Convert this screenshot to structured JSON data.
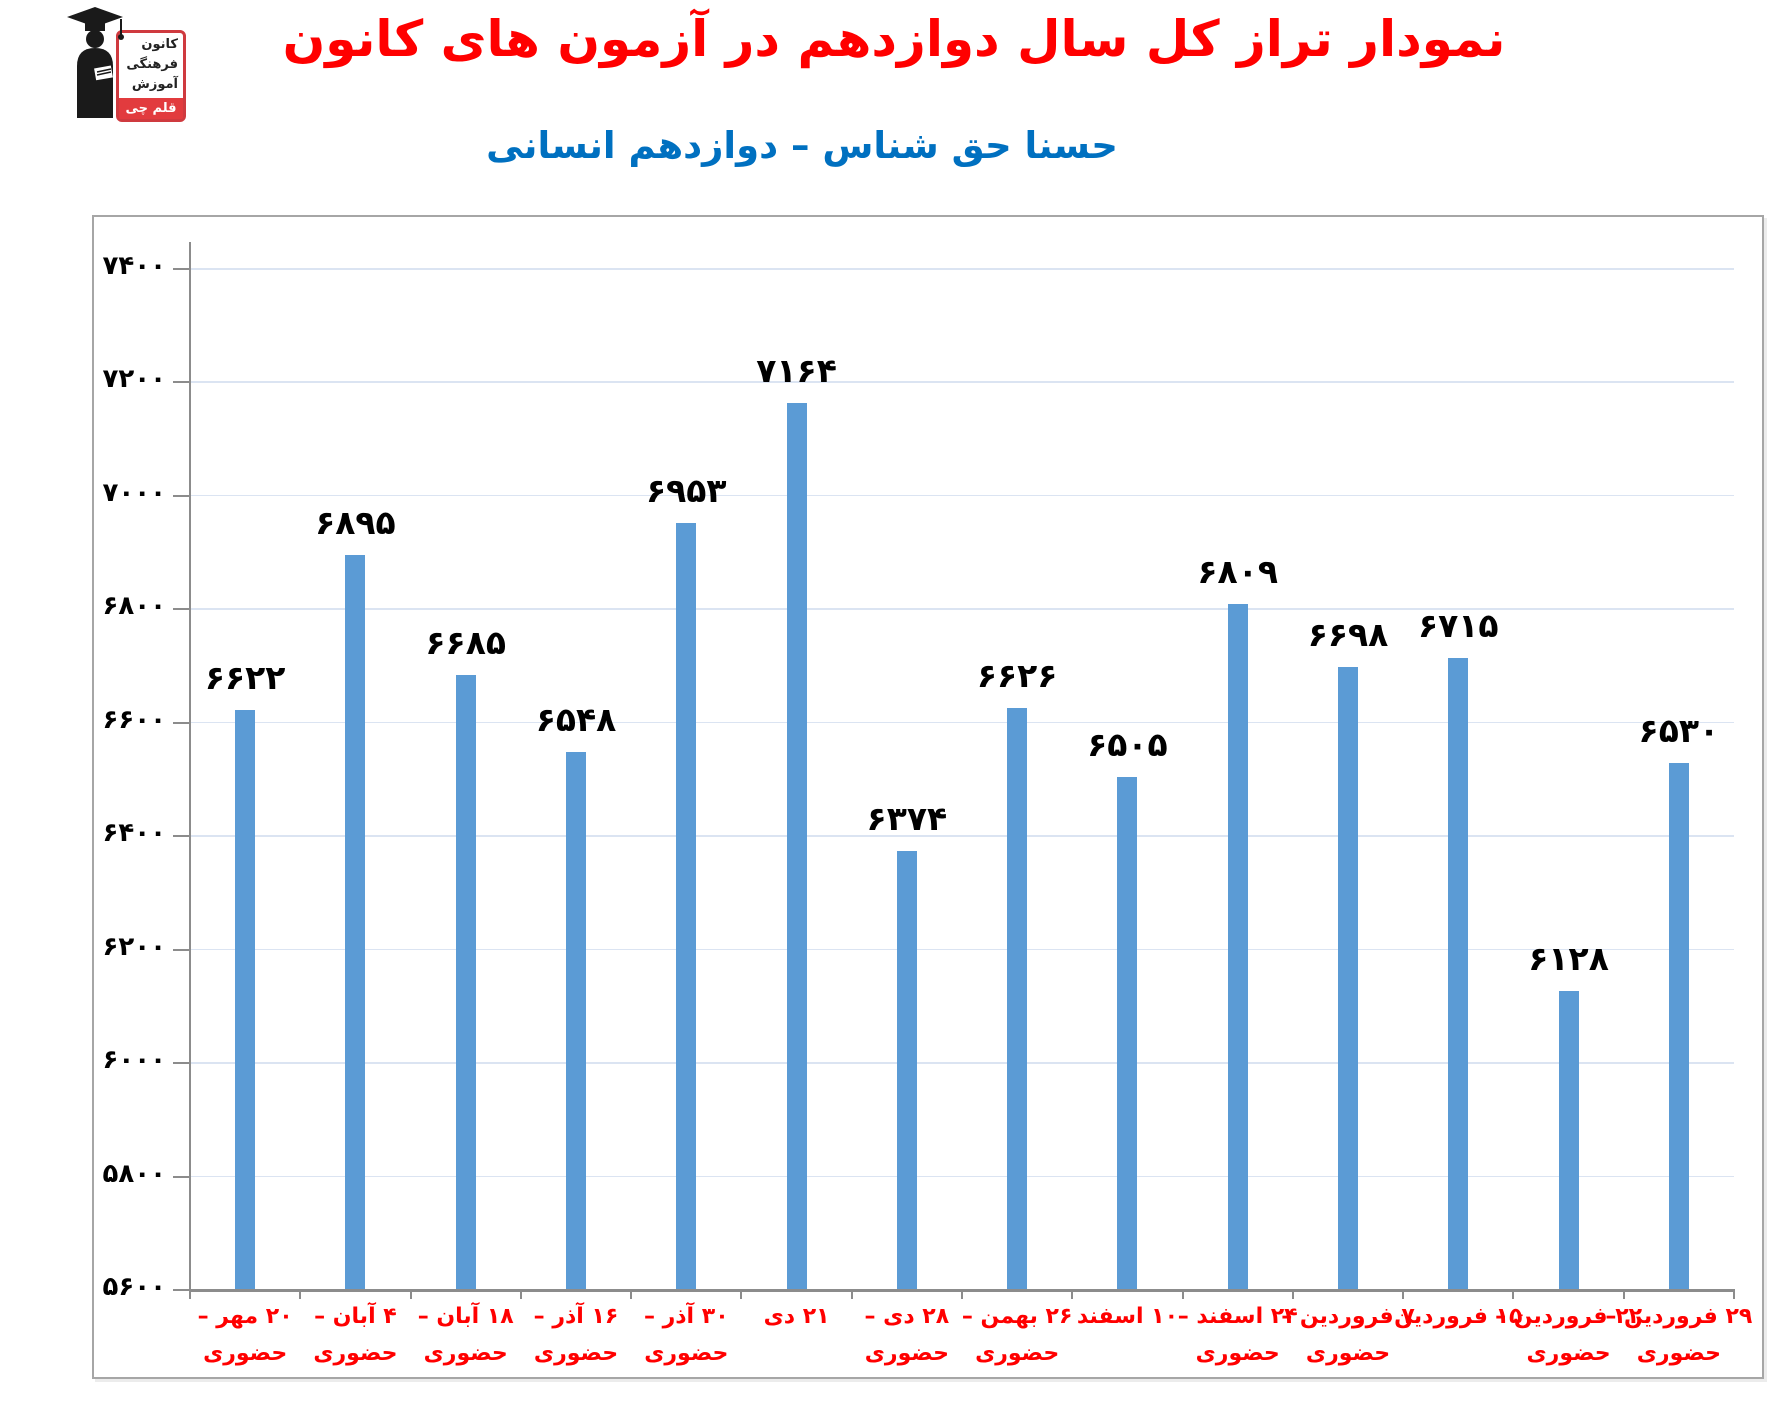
{
  "logo": {
    "org_line1": "کانون",
    "org_line2": "فرهنگی",
    "org_line3": "آموزش",
    "brand": "قلم چی",
    "brand_bg": "#e23b3e",
    "border_color": "#cf3a3f"
  },
  "chart_data": {
    "type": "bar",
    "title": "نمودار تراز کل سال دوازدهم در آزمون های کانون",
    "subtitle": "حسنا حق شناس – دوازدهم انسانی",
    "title_color": "#ff0000",
    "subtitle_color": "#0070c0",
    "categories": [
      {
        "line1": "۲۰ مهر –",
        "line2": "حضوری"
      },
      {
        "line1": "۴ آبان –",
        "line2": "حضوری"
      },
      {
        "line1": "۱۸ آبان –",
        "line2": "حضوری"
      },
      {
        "line1": "۱۶ آذر –",
        "line2": "حضوری"
      },
      {
        "line1": "۳۰ آذر –",
        "line2": "حضوری"
      },
      {
        "line1": "۲۱ دی",
        "line2": ""
      },
      {
        "line1": "۲۸ دی –",
        "line2": "حضوری"
      },
      {
        "line1": "۲۶ بهمن –",
        "line2": "حضوری"
      },
      {
        "line1": "۱۰ اسفند",
        "line2": ""
      },
      {
        "line1": "۲۴ اسفند –",
        "line2": "حضوری"
      },
      {
        "line1": "۷ فروردین –",
        "line2": "حضوری"
      },
      {
        "line1": "۱۵ فروردین",
        "line2": ""
      },
      {
        "line1": "۲۲ فروردین –",
        "line2": "حضوری"
      },
      {
        "line1": "۲۹ فروردین –",
        "line2": "حضوری"
      }
    ],
    "values": [
      6622,
      6895,
      6685,
      6548,
      6953,
      7164,
      6374,
      6626,
      6505,
      6809,
      6698,
      6715,
      6128,
      6530
    ],
    "value_labels": [
      "۶۶۲۲",
      "۶۸۹۵",
      "۶۶۸۵",
      "۶۵۴۸",
      "۶۹۵۳",
      "۷۱۶۴",
      "۶۳۷۴",
      "۶۶۲۶",
      "۶۵۰۵",
      "۶۸۰۹",
      "۶۶۹۸",
      "۶۷۱۵",
      "۶۱۲۸",
      "۶۵۳۰"
    ],
    "y_ticks": [
      {
        "value": 7400,
        "label": "۷۴۰۰"
      },
      {
        "value": 7200,
        "label": "۷۲۰۰"
      },
      {
        "value": 7000,
        "label": "۷۰۰۰"
      },
      {
        "value": 6800,
        "label": "۶۸۰۰"
      },
      {
        "value": 6600,
        "label": "۶۶۰۰"
      },
      {
        "value": 6400,
        "label": "۶۴۰۰"
      },
      {
        "value": 6200,
        "label": "۶۲۰۰"
      },
      {
        "value": 6000,
        "label": "۶۰۰۰"
      },
      {
        "value": 5800,
        "label": "۵۸۰۰"
      },
      {
        "value": 5600,
        "label": "۵۶۰۰"
      }
    ],
    "ylim": [
      5600,
      7400
    ],
    "xlabel": "",
    "ylabel": "",
    "grid": true,
    "legend": null,
    "bar_color": "#5b9bd5",
    "gridline_color": "#dbe4f2",
    "axis_color": "#8c8c8c",
    "category_label_color": "#ff0000",
    "value_label_color": "#000000"
  }
}
